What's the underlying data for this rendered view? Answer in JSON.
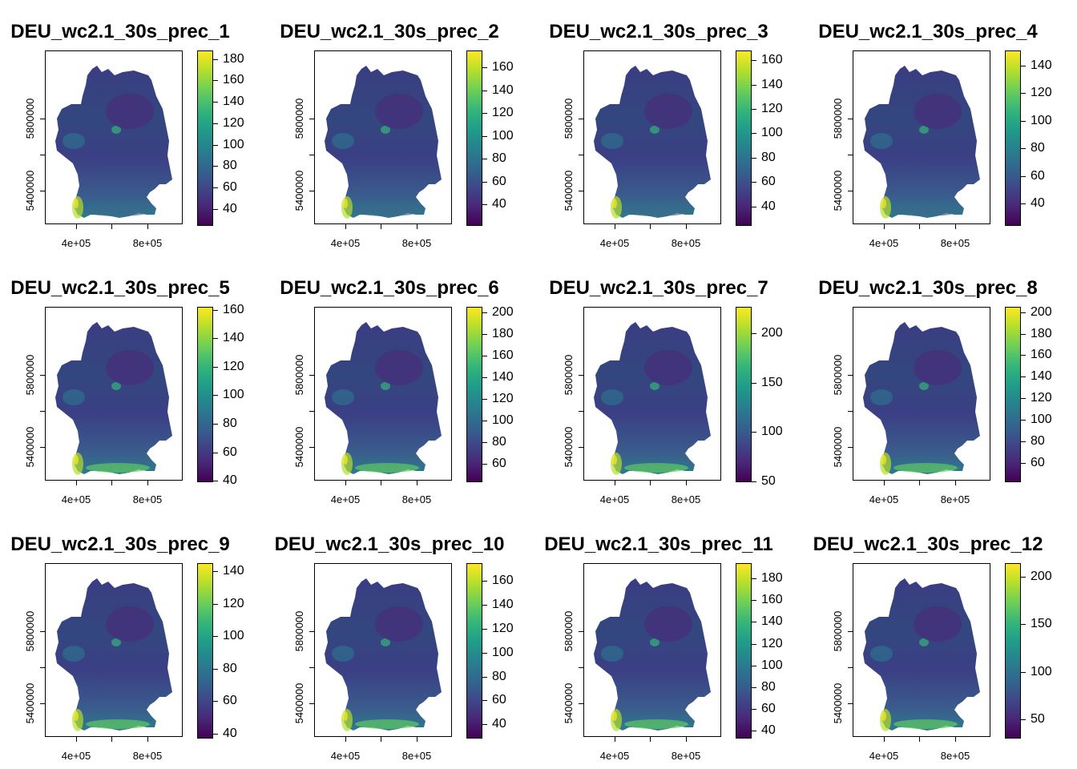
{
  "chart_data": [
    {
      "type": "heatmap",
      "title": "DEU_wc2.1_30s_prec_1",
      "x_ticks": [
        "4e+05",
        "8e+05"
      ],
      "y_ticks": [
        "5400000",
        "5800000"
      ],
      "colorbar": {
        "min": 24,
        "max": 188,
        "ticks": [
          40,
          60,
          80,
          100,
          120,
          140,
          160,
          180
        ]
      },
      "palette": "viridis"
    },
    {
      "type": "heatmap",
      "title": "DEU_wc2.1_30s_prec_2",
      "x_ticks": [
        "4e+05",
        "8e+05"
      ],
      "y_ticks": [
        "5400000",
        "5800000"
      ],
      "colorbar": {
        "min": 21,
        "max": 175,
        "ticks": [
          40,
          60,
          80,
          100,
          120,
          140,
          160
        ]
      },
      "palette": "viridis"
    },
    {
      "type": "heatmap",
      "title": "DEU_wc2.1_30s_prec_3",
      "x_ticks": [
        "4e+05",
        "8e+05"
      ],
      "y_ticks": [
        "5400000",
        "5800000"
      ],
      "colorbar": {
        "min": 24,
        "max": 168,
        "ticks": [
          40,
          60,
          80,
          100,
          120,
          140,
          160
        ]
      },
      "palette": "viridis"
    },
    {
      "type": "heatmap",
      "title": "DEU_wc2.1_30s_prec_4",
      "x_ticks": [
        "4e+05",
        "8e+05"
      ],
      "y_ticks": [
        "5400000",
        "5800000"
      ],
      "colorbar": {
        "min": 24,
        "max": 151,
        "ticks": [
          40,
          60,
          80,
          100,
          120,
          140
        ]
      },
      "palette": "viridis"
    },
    {
      "type": "heatmap",
      "title": "DEU_wc2.1_30s_prec_5",
      "x_ticks": [
        "4e+05",
        "8e+05"
      ],
      "y_ticks": [
        "5400000",
        "5800000"
      ],
      "colorbar": {
        "min": 39,
        "max": 162,
        "ticks": [
          40,
          60,
          80,
          100,
          120,
          140,
          160
        ]
      },
      "palette": "viridis"
    },
    {
      "type": "heatmap",
      "title": "DEU_wc2.1_30s_prec_6",
      "x_ticks": [
        "4e+05",
        "8e+05"
      ],
      "y_ticks": [
        "5400000",
        "5800000"
      ],
      "colorbar": {
        "min": 43,
        "max": 205,
        "ticks": [
          60,
          80,
          100,
          120,
          140,
          160,
          180,
          200
        ]
      },
      "palette": "viridis"
    },
    {
      "type": "heatmap",
      "title": "DEU_wc2.1_30s_prec_7",
      "x_ticks": [
        "4e+05",
        "8e+05"
      ],
      "y_ticks": [
        "5400000",
        "5800000"
      ],
      "colorbar": {
        "min": 49,
        "max": 227,
        "ticks": [
          50,
          100,
          150,
          200
        ]
      },
      "palette": "viridis"
    },
    {
      "type": "heatmap",
      "title": "DEU_wc2.1_30s_prec_8",
      "x_ticks": [
        "4e+05",
        "8e+05"
      ],
      "y_ticks": [
        "5400000",
        "5800000"
      ],
      "colorbar": {
        "min": 42,
        "max": 205,
        "ticks": [
          60,
          80,
          100,
          120,
          140,
          160,
          180,
          200
        ]
      },
      "palette": "viridis"
    },
    {
      "type": "heatmap",
      "title": "DEU_wc2.1_30s_prec_9",
      "x_ticks": [
        "4e+05",
        "8e+05"
      ],
      "y_ticks": [
        "5400000",
        "5800000"
      ],
      "colorbar": {
        "min": 37,
        "max": 145,
        "ticks": [
          40,
          60,
          80,
          100,
          120,
          140
        ]
      },
      "palette": "viridis"
    },
    {
      "type": "heatmap",
      "title": "DEU_wc2.1_30s_prec_10",
      "x_ticks": [
        "4e+05",
        "8e+05"
      ],
      "y_ticks": [
        "5400000",
        "5800000"
      ],
      "colorbar": {
        "min": 28,
        "max": 175,
        "ticks": [
          40,
          60,
          80,
          100,
          120,
          140,
          160
        ]
      },
      "palette": "viridis"
    },
    {
      "type": "heatmap",
      "title": "DEU_wc2.1_30s_prec_11",
      "x_ticks": [
        "4e+05",
        "8e+05"
      ],
      "y_ticks": [
        "5400000",
        "5800000"
      ],
      "colorbar": {
        "min": 33,
        "max": 194,
        "ticks": [
          40,
          60,
          80,
          100,
          120,
          140,
          160,
          180
        ]
      },
      "palette": "viridis"
    },
    {
      "type": "heatmap",
      "title": "DEU_wc2.1_30s_prec_12",
      "x_ticks": [
        "4e+05",
        "8e+05"
      ],
      "y_ticks": [
        "5400000",
        "5800000"
      ],
      "colorbar": {
        "min": 30,
        "max": 214,
        "ticks": [
          50,
          100,
          150,
          200
        ]
      },
      "palette": "viridis"
    }
  ]
}
